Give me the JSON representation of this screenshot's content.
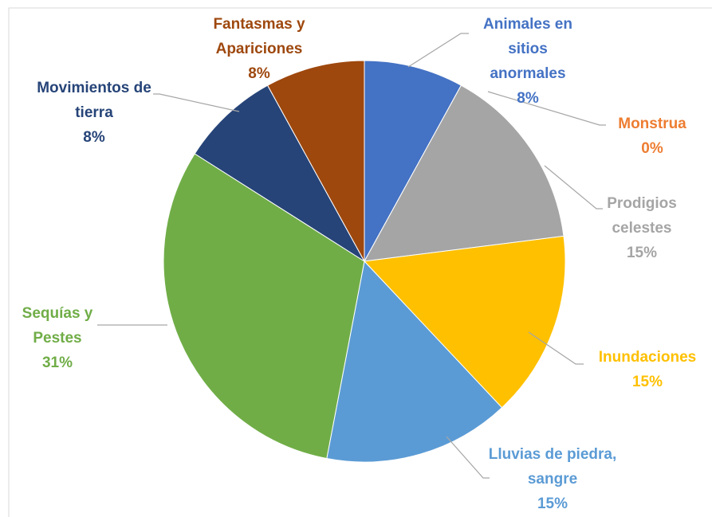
{
  "chart_data": {
    "type": "pie",
    "categories": [
      "Animales en sitios anormales",
      "Monstrua",
      "Prodigios celestes",
      "Inundaciones",
      "Lluvias de piedra, sangre",
      "Sequías y Pestes",
      "Movimientos de tierra",
      "Fantasmas y Apariciones"
    ],
    "values": [
      8,
      0,
      15,
      15,
      15,
      31,
      8,
      8
    ],
    "value_labels": [
      "8%",
      "0%",
      "15%",
      "15%",
      "15%",
      "31%",
      "8%",
      "8%"
    ],
    "colors": [
      "#4472c4",
      "#ed7d31",
      "#a5a5a5",
      "#ffc000",
      "#5b9bd5",
      "#70ad47",
      "#264478",
      "#9e480e"
    ]
  }
}
